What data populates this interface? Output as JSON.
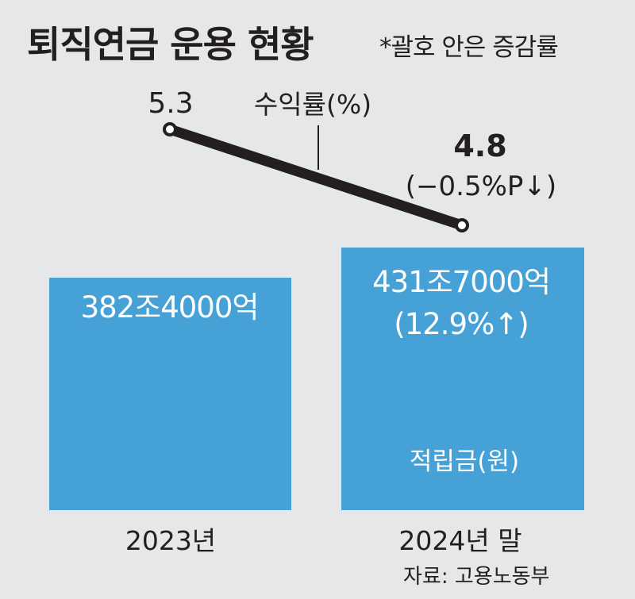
{
  "title": "퇴직연금 운용 현황",
  "note": "*괄호 안은 증감률",
  "source": "자료: 고용노동부",
  "colors": {
    "bar": "#45a1d6",
    "line": "#231f20",
    "background": "#e6e7e9"
  },
  "chart_data": {
    "type": "bar",
    "categories": [
      "2023년",
      "2024년 말"
    ],
    "bar_series": {
      "name": "적립금(원)",
      "values": [
        3824000,
        4317000
      ],
      "value_unit": "억원",
      "labels": [
        "382조4000억",
        "431조7000억"
      ],
      "change_labels": [
        "",
        "(12.9%↑)"
      ]
    },
    "line_series": {
      "name": "수익률(%)",
      "values": [
        5.3,
        4.8
      ],
      "labels": [
        "5.3",
        "4.8"
      ],
      "change_labels": [
        "",
        "(−0.5%P↓)"
      ]
    },
    "grid": false,
    "legend": "none"
  }
}
